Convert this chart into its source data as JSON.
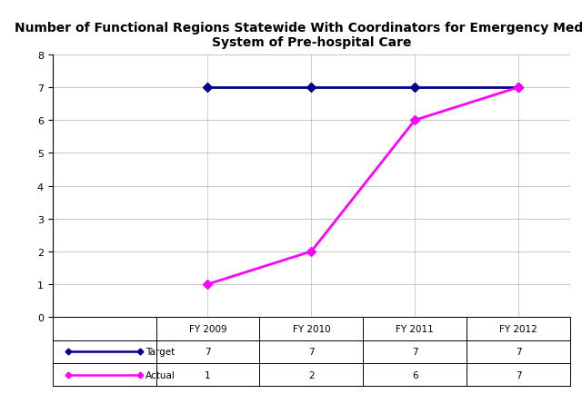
{
  "title": "Number of Functional Regions Statewide With Coordinators for Emergency Medical\nSystem of Pre-hospital Care",
  "title_fontsize": 10,
  "title_fontweight": "bold",
  "categories": [
    "FY 2009",
    "FY 2010",
    "FY 2011",
    "FY 2012"
  ],
  "target_values": [
    7,
    7,
    7,
    7
  ],
  "actual_values": [
    1,
    2,
    6,
    7
  ],
  "target_color": "#00008B",
  "actual_color": "#FF00FF",
  "ylim_min": 0,
  "ylim_max": 8,
  "yticks": [
    0,
    1,
    2,
    3,
    4,
    5,
    6,
    7,
    8
  ],
  "grid_color": "#BBBBBB",
  "background_color": "#FFFFFF",
  "target_label": "Target",
  "actual_label": "Actual",
  "marker_style": "D",
  "linewidth": 2.0,
  "markersize": 5,
  "table_fontsize": 7.5,
  "ytick_fontsize": 8
}
